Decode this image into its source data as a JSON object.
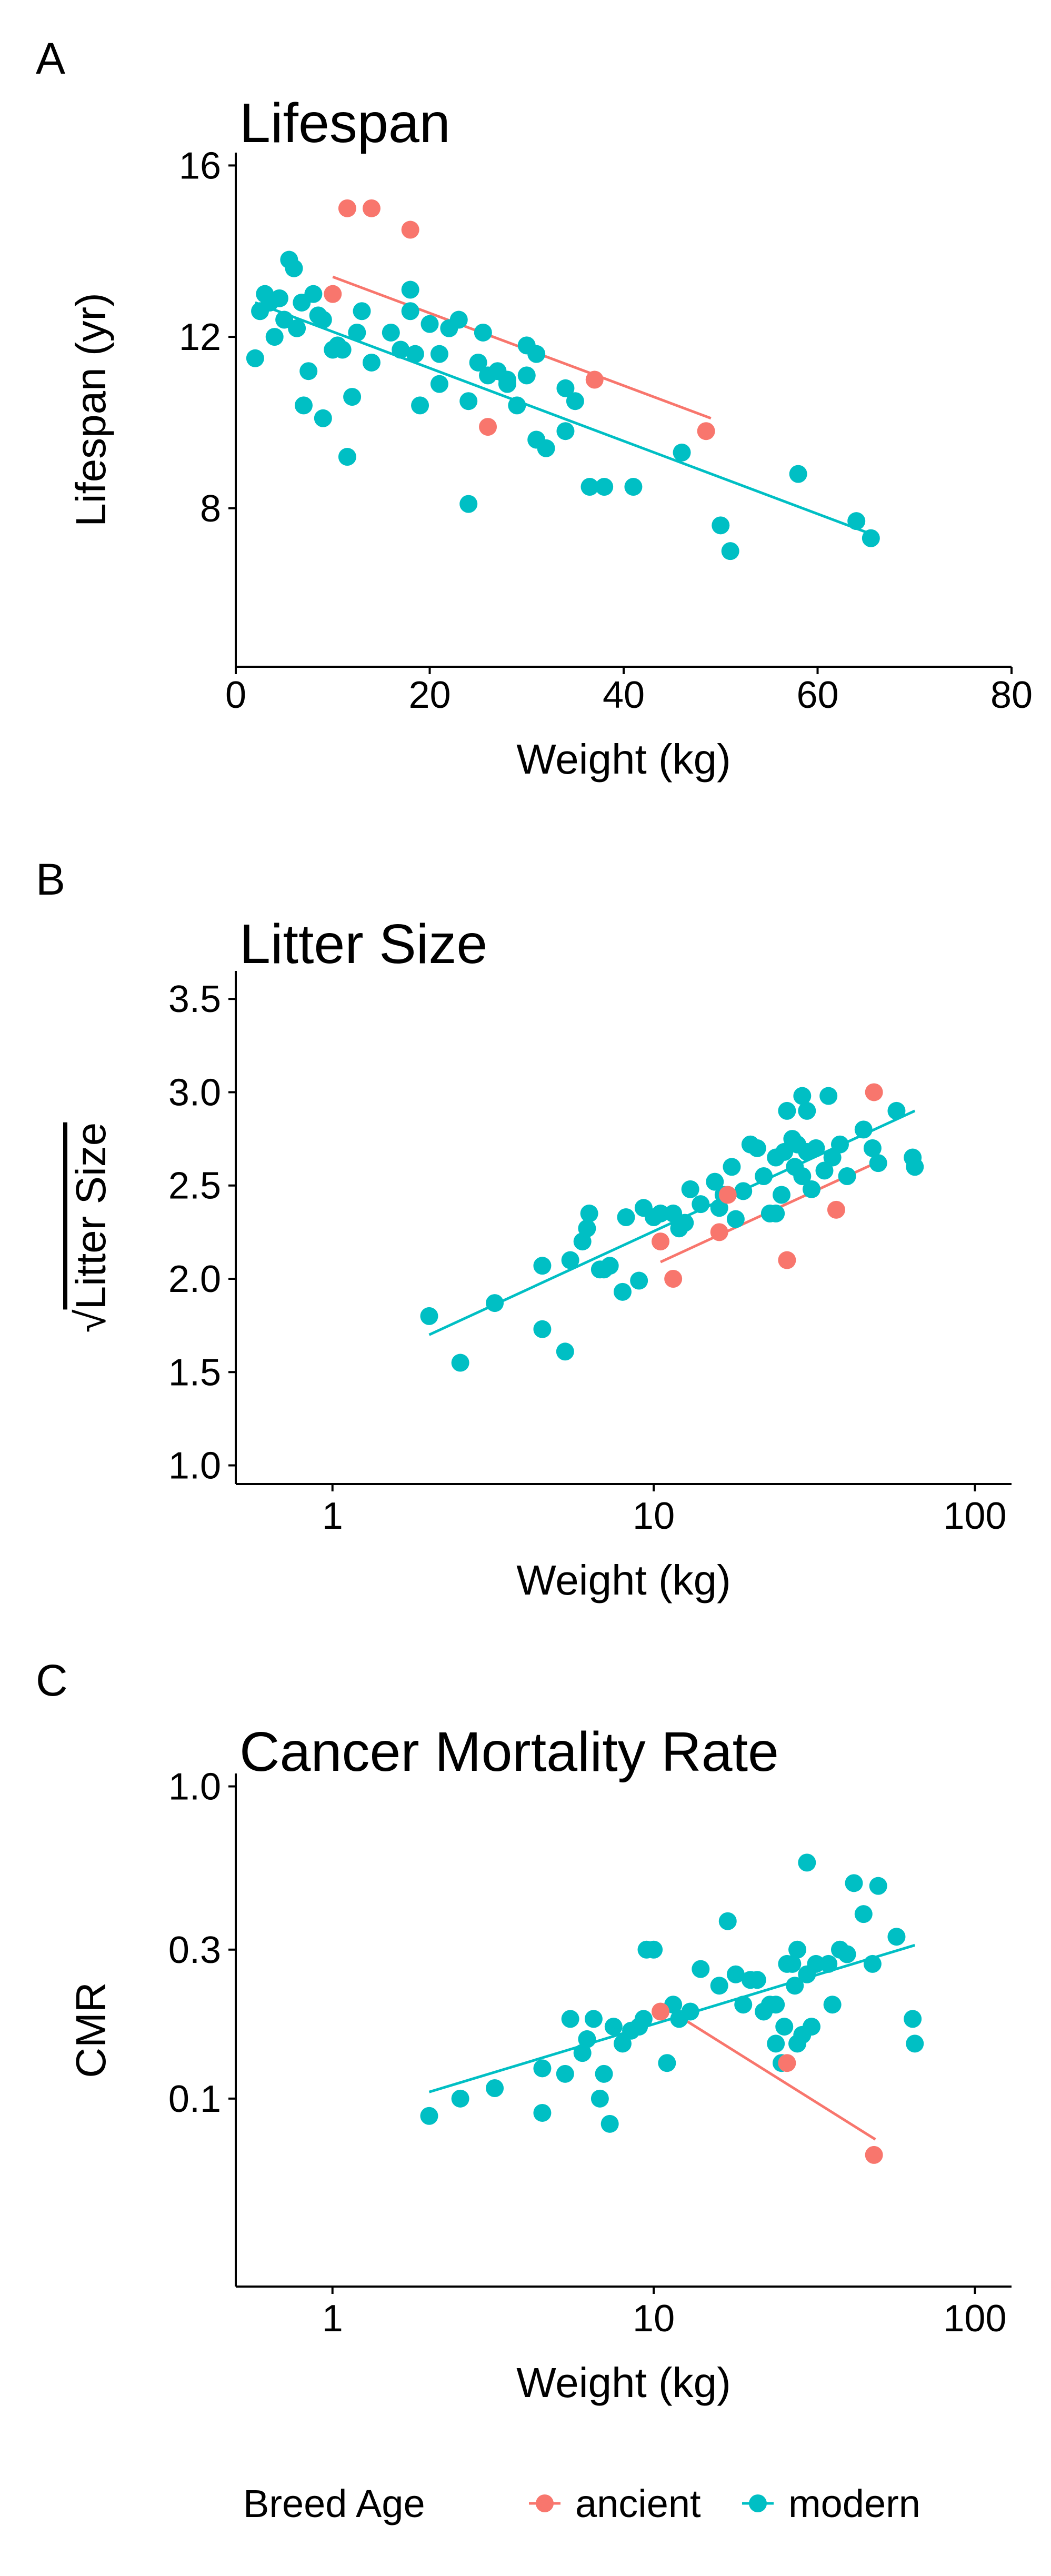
{
  "colors": {
    "ancient": "#F8766D",
    "modern": "#00BFC4",
    "axis": "#000000"
  },
  "legend": {
    "title": "Breed Age",
    "entries": [
      {
        "key": "ancient",
        "label": "ancient"
      },
      {
        "key": "modern",
        "label": "modern"
      }
    ]
  },
  "chart_data": [
    {
      "panel_label": "A",
      "type": "scatter",
      "title": "Lifespan",
      "xlabel": "Weight (kg)",
      "ylabel": "Lifespan (yr)",
      "xscale": "linear",
      "yscale": "linear",
      "xlim": [
        0,
        80
      ],
      "ylim": [
        4.3,
        16.3
      ],
      "xticks": [
        0,
        20,
        40,
        60,
        80
      ],
      "xtick_labels": [
        "0",
        "20",
        "40",
        "60",
        "80"
      ],
      "yticks": [
        8,
        12,
        16
      ],
      "ytick_labels": [
        "8",
        "12",
        "16"
      ],
      "series": [
        {
          "name": "ancient",
          "points": [
            [
              10,
              13.0
            ],
            [
              11.5,
              15.0
            ],
            [
              14,
              15.0
            ],
            [
              18,
              14.5
            ],
            [
              26,
              9.9
            ],
            [
              37,
              11.0
            ],
            [
              48.5,
              9.8
            ]
          ],
          "fit": [
            [
              10,
              13.4
            ],
            [
              49,
              10.1
            ]
          ]
        },
        {
          "name": "modern",
          "points": [
            [
              2,
              11.5
            ],
            [
              2.5,
              12.6
            ],
            [
              3,
              13.0
            ],
            [
              3.5,
              12.8
            ],
            [
              4,
              12.0
            ],
            [
              4.5,
              12.9
            ],
            [
              5,
              12.4
            ],
            [
              5.5,
              13.8
            ],
            [
              6,
              13.6
            ],
            [
              6.3,
              12.2
            ],
            [
              6.8,
              12.8
            ],
            [
              7,
              10.4
            ],
            [
              7.5,
              11.2
            ],
            [
              8,
              13.0
            ],
            [
              8.5,
              12.5
            ],
            [
              9,
              10.1
            ],
            [
              9,
              12.4
            ],
            [
              10,
              11.7
            ],
            [
              10.5,
              11.8
            ],
            [
              11,
              11.7
            ],
            [
              11.5,
              9.2
            ],
            [
              12,
              10.6
            ],
            [
              12.5,
              12.1
            ],
            [
              13,
              12.6
            ],
            [
              14,
              11.4
            ],
            [
              16,
              12.1
            ],
            [
              17,
              11.7
            ],
            [
              18,
              13.1
            ],
            [
              18,
              12.6
            ],
            [
              18.5,
              11.6
            ],
            [
              19,
              10.4
            ],
            [
              20,
              12.3
            ],
            [
              21,
              11.6
            ],
            [
              21,
              10.9
            ],
            [
              22,
              12.2
            ],
            [
              23,
              12.4
            ],
            [
              24,
              10.5
            ],
            [
              24,
              8.1
            ],
            [
              25,
              11.4
            ],
            [
              25.5,
              12.1
            ],
            [
              26,
              11.1
            ],
            [
              27,
              11.2
            ],
            [
              28,
              11.0
            ],
            [
              28,
              10.9
            ],
            [
              29,
              10.4
            ],
            [
              30,
              11.1
            ],
            [
              30,
              11.8
            ],
            [
              31,
              11.6
            ],
            [
              31,
              9.6
            ],
            [
              32,
              9.4
            ],
            [
              34,
              10.8
            ],
            [
              34,
              9.8
            ],
            [
              35,
              10.5
            ],
            [
              36.5,
              8.5
            ],
            [
              38,
              8.5
            ],
            [
              41,
              8.5
            ],
            [
              46,
              9.3
            ],
            [
              50,
              7.6
            ],
            [
              51,
              7.0
            ],
            [
              58,
              8.8
            ],
            [
              64,
              7.7
            ],
            [
              65.5,
              7.3
            ]
          ],
          "fit": [
            [
              2,
              12.8
            ],
            [
              65.5,
              7.4
            ]
          ]
        }
      ]
    },
    {
      "panel_label": "B",
      "type": "scatter",
      "title": "Litter Size",
      "xlabel": "Weight (kg)",
      "ylabel": "Litter Size",
      "ylabel_prefix": "√",
      "xscale": "log10",
      "yscale": "linear",
      "xlim": [
        0.5,
        130
      ],
      "ylim": [
        0.9,
        3.65
      ],
      "xticks": [
        1,
        10,
        100
      ],
      "xtick_labels": [
        "1",
        "10",
        "100"
      ],
      "yticks": [
        1.0,
        1.5,
        2.0,
        2.5,
        3.0,
        3.5
      ],
      "ytick_labels": [
        "1.0",
        "1.5",
        "2.0",
        "2.5",
        "3.0",
        "3.5"
      ],
      "series": [
        {
          "name": "ancient",
          "points": [
            [
              10.5,
              2.2
            ],
            [
              11.5,
              2.0
            ],
            [
              16,
              2.25
            ],
            [
              17,
              2.45
            ],
            [
              26,
              2.1
            ],
            [
              37,
              2.37
            ],
            [
              48.5,
              3.0
            ]
          ],
          "fit": [
            [
              10.5,
              2.09
            ],
            [
              49,
              2.62
            ]
          ]
        },
        {
          "name": "modern",
          "points": [
            [
              2,
              1.8
            ],
            [
              2.5,
              1.55
            ],
            [
              3.2,
              1.87
            ],
            [
              4.5,
              2.07
            ],
            [
              4.5,
              1.73
            ],
            [
              5.3,
              1.61
            ],
            [
              5.5,
              2.1
            ],
            [
              6,
              2.2
            ],
            [
              6.2,
              2.27
            ],
            [
              6.3,
              2.35
            ],
            [
              6.8,
              2.05
            ],
            [
              7,
              2.05
            ],
            [
              7.3,
              2.07
            ],
            [
              8,
              1.93
            ],
            [
              8.2,
              2.33
            ],
            [
              9,
              1.99
            ],
            [
              9.3,
              2.38
            ],
            [
              10,
              2.33
            ],
            [
              10.5,
              2.35
            ],
            [
              11.5,
              2.35
            ],
            [
              12,
              2.27
            ],
            [
              12.5,
              2.3
            ],
            [
              13,
              2.48
            ],
            [
              14,
              2.4
            ],
            [
              15.5,
              2.52
            ],
            [
              16,
              2.38
            ],
            [
              16.5,
              2.45
            ],
            [
              17.5,
              2.6
            ],
            [
              18,
              2.32
            ],
            [
              19,
              2.47
            ],
            [
              20,
              2.72
            ],
            [
              21,
              2.7
            ],
            [
              22,
              2.55
            ],
            [
              23,
              2.35
            ],
            [
              24,
              2.65
            ],
            [
              24,
              2.35
            ],
            [
              25,
              2.45
            ],
            [
              25.5,
              2.68
            ],
            [
              26,
              2.9
            ],
            [
              27,
              2.75
            ],
            [
              27.5,
              2.6
            ],
            [
              28,
              2.72
            ],
            [
              29,
              2.55
            ],
            [
              29,
              2.98
            ],
            [
              30,
              2.68
            ],
            [
              30,
              2.9
            ],
            [
              31,
              2.48
            ],
            [
              32,
              2.7
            ],
            [
              34,
              2.58
            ],
            [
              35,
              2.98
            ],
            [
              36,
              2.65
            ],
            [
              38,
              2.72
            ],
            [
              40,
              2.55
            ],
            [
              45,
              2.8
            ],
            [
              48,
              2.7
            ],
            [
              50,
              2.62
            ],
            [
              57,
              2.9
            ],
            [
              64,
              2.65
            ],
            [
              65,
              2.6
            ]
          ],
          "fit": [
            [
              2,
              1.7
            ],
            [
              65,
              2.9
            ]
          ]
        }
      ]
    },
    {
      "panel_label": "C",
      "type": "scatter",
      "title": "Cancer Mortality Rate",
      "xlabel": "Weight (kg)",
      "ylabel": "CMR",
      "xscale": "log10",
      "yscale": "log10",
      "xlim": [
        0.5,
        130
      ],
      "ylim": [
        0.025,
        1.1
      ],
      "xticks": [
        1,
        10,
        100
      ],
      "xtick_labels": [
        "1",
        "10",
        "100"
      ],
      "yticks": [
        0.1,
        0.3,
        1.0
      ],
      "ytick_labels": [
        "0.1",
        "0.3",
        "1.0"
      ],
      "series": [
        {
          "name": "ancient",
          "points": [
            [
              10.5,
              0.19
            ],
            [
              26,
              0.13
            ],
            [
              48.5,
              0.066
            ]
          ],
          "fit": [
            [
              10.5,
              0.2
            ],
            [
              49,
              0.074
            ]
          ]
        },
        {
          "name": "modern",
          "points": [
            [
              2,
              0.088
            ],
            [
              2.5,
              0.1
            ],
            [
              3.2,
              0.108
            ],
            [
              4.5,
              0.125
            ],
            [
              4.5,
              0.09
            ],
            [
              5.3,
              0.12
            ],
            [
              5.5,
              0.18
            ],
            [
              6,
              0.14
            ],
            [
              6.2,
              0.155
            ],
            [
              6.5,
              0.18
            ],
            [
              6.8,
              0.1
            ],
            [
              7,
              0.12
            ],
            [
              7.3,
              0.083
            ],
            [
              7.5,
              0.17
            ],
            [
              8,
              0.15
            ],
            [
              8.5,
              0.165
            ],
            [
              9,
              0.17
            ],
            [
              9.3,
              0.18
            ],
            [
              9.5,
              0.3
            ],
            [
              10,
              0.3
            ],
            [
              11,
              0.13
            ],
            [
              11.5,
              0.2
            ],
            [
              12,
              0.18
            ],
            [
              13,
              0.19
            ],
            [
              14,
              0.26
            ],
            [
              16,
              0.23
            ],
            [
              17,
              0.37
            ],
            [
              18,
              0.25
            ],
            [
              19,
              0.2
            ],
            [
              20,
              0.24
            ],
            [
              21,
              0.24
            ],
            [
              22,
              0.19
            ],
            [
              23,
              0.2
            ],
            [
              24,
              0.15
            ],
            [
              24,
              0.2
            ],
            [
              25,
              0.13
            ],
            [
              25.5,
              0.17
            ],
            [
              26,
              0.27
            ],
            [
              27,
              0.27
            ],
            [
              27.5,
              0.23
            ],
            [
              28,
              0.3
            ],
            [
              28,
              0.15
            ],
            [
              29,
              0.16
            ],
            [
              30,
              0.25
            ],
            [
              30,
              0.57
            ],
            [
              31,
              0.17
            ],
            [
              32,
              0.27
            ],
            [
              35,
              0.27
            ],
            [
              36,
              0.2
            ],
            [
              38,
              0.3
            ],
            [
              40,
              0.29
            ],
            [
              42,
              0.49
            ],
            [
              45,
              0.39
            ],
            [
              48,
              0.27
            ],
            [
              50,
              0.48
            ],
            [
              57,
              0.33
            ],
            [
              64,
              0.18
            ],
            [
              65,
              0.15
            ]
          ],
          "fit": [
            [
              2,
              0.105
            ],
            [
              65,
              0.31
            ]
          ]
        }
      ]
    }
  ]
}
